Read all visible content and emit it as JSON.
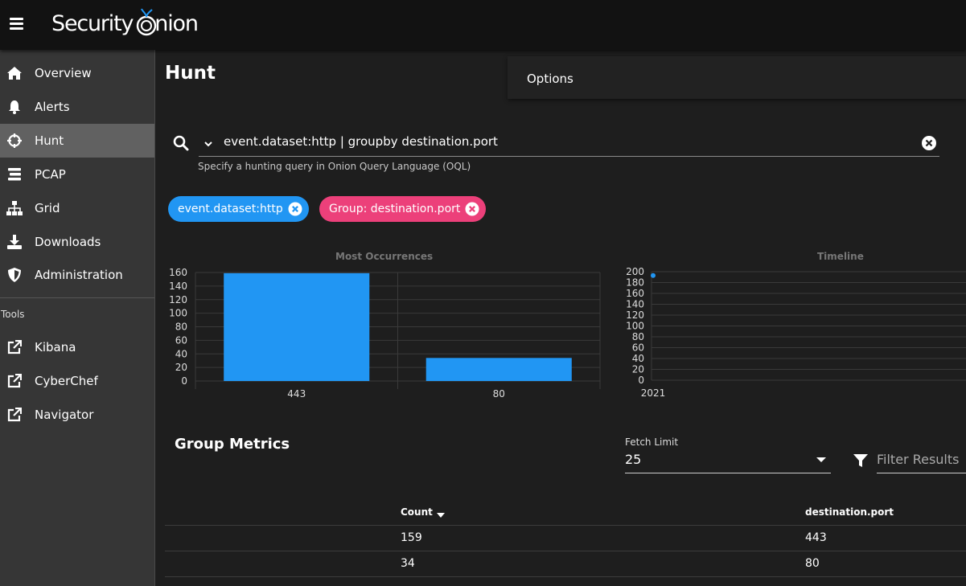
{
  "app": {
    "logo_text": "Security",
    "logo_text_2": "nion"
  },
  "sidebar": {
    "items": [
      {
        "label": "Overview",
        "icon": "home-icon"
      },
      {
        "label": "Alerts",
        "icon": "bell-icon"
      },
      {
        "label": "Hunt",
        "icon": "crosshairs-icon"
      },
      {
        "label": "PCAP",
        "icon": "stream-icon"
      },
      {
        "label": "Grid",
        "icon": "sitemap-icon"
      },
      {
        "label": "Downloads",
        "icon": "download-icon"
      },
      {
        "label": "Administration",
        "icon": "shield-icon"
      }
    ],
    "tools_heading": "Tools",
    "tools": [
      {
        "label": "Kibana",
        "icon": "external-link-icon"
      },
      {
        "label": "CyberChef",
        "icon": "external-link-icon"
      },
      {
        "label": "Navigator",
        "icon": "external-link-icon"
      }
    ]
  },
  "page": {
    "title": "Hunt",
    "options_label": "Options"
  },
  "search": {
    "query": "event.dataset:http | groupby destination.port",
    "hint": "Specify a hunting query in Onion Query Language (OQL)"
  },
  "chips": [
    {
      "label": "event.dataset:http",
      "color": "#2196f3"
    },
    {
      "label": "Group: destination.port",
      "color": "#ec407a"
    }
  ],
  "chart_data": [
    {
      "type": "bar",
      "title": "Most Occurrences",
      "categories": [
        "443",
        "80"
      ],
      "values": [
        159,
        34
      ],
      "ylim": [
        0,
        160
      ],
      "yticks": [
        "0",
        "20",
        "40",
        "60",
        "80",
        "100",
        "120",
        "140",
        "160"
      ],
      "grid": true,
      "color": "#2196f3"
    },
    {
      "type": "scatter",
      "title": "Timeline",
      "x": [
        "2021"
      ],
      "values": [
        193
      ],
      "ylim": [
        0,
        200
      ],
      "yticks": [
        "0",
        "20",
        "40",
        "60",
        "80",
        "100",
        "120",
        "140",
        "160",
        "180",
        "200"
      ],
      "grid": true,
      "color": "#2196f3"
    }
  ],
  "metrics": {
    "title": "Group Metrics",
    "fetch_limit_label": "Fetch Limit",
    "fetch_limit_value": "25",
    "filter_placeholder": "Filter Results",
    "columns": [
      "Count",
      "destination.port"
    ],
    "rows": [
      {
        "count": "159",
        "port": "443"
      },
      {
        "count": "34",
        "port": "80"
      }
    ]
  }
}
